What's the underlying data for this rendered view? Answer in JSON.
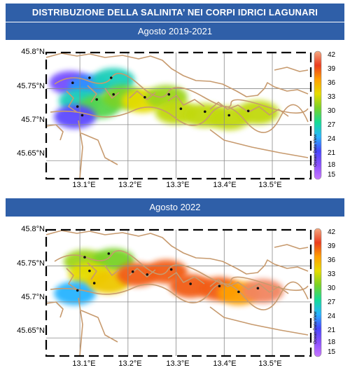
{
  "title": "DISTRIBUZIONE DELLA SALINITA’ NEI CORPI IDRICI LAGUNARI",
  "maps": [
    {
      "period": "Agosto 2019-2021",
      "lat_labels": [
        "45.8°N",
        "45.75°N",
        "45.7°N",
        "45.65°N"
      ],
      "lon_labels": [
        "13.1°E",
        "13.2°E",
        "13.3°E",
        "13.4°E",
        "13.5°E"
      ],
      "colorbar_ticks": [
        "42",
        "39",
        "36",
        "33",
        "30",
        "27",
        "24",
        "21",
        "18",
        "15"
      ],
      "watermark": "Ocean Data View",
      "salinity_range": [
        15,
        42
      ],
      "zones": [
        {
          "lon": 13.08,
          "lat": 45.758,
          "salinity": 19
        },
        {
          "lon": 13.12,
          "lat": 45.753,
          "salinity": 23
        },
        {
          "lon": 13.17,
          "lat": 45.762,
          "salinity": 26
        },
        {
          "lon": 13.1,
          "lat": 45.733,
          "salinity": 26
        },
        {
          "lon": 13.14,
          "lat": 45.725,
          "salinity": 29
        },
        {
          "lon": 13.09,
          "lat": 45.711,
          "salinity": 20
        },
        {
          "lon": 13.19,
          "lat": 45.738,
          "salinity": 30
        },
        {
          "lon": 13.23,
          "lat": 45.733,
          "salinity": 33
        },
        {
          "lon": 13.28,
          "lat": 45.738,
          "salinity": 31
        },
        {
          "lon": 13.3,
          "lat": 45.717,
          "salinity": 32
        },
        {
          "lon": 13.36,
          "lat": 45.713,
          "salinity": 32
        },
        {
          "lon": 13.41,
          "lat": 45.709,
          "salinity": 32
        },
        {
          "lon": 13.47,
          "lat": 45.717,
          "salinity": 32
        }
      ],
      "stations": [
        {
          "lon": 13.085,
          "lat": 45.758
        },
        {
          "lon": 13.12,
          "lat": 45.765
        },
        {
          "lon": 13.165,
          "lat": 45.765
        },
        {
          "lon": 13.135,
          "lat": 45.735
        },
        {
          "lon": 13.095,
          "lat": 45.725
        },
        {
          "lon": 13.105,
          "lat": 45.713
        },
        {
          "lon": 13.17,
          "lat": 45.742
        },
        {
          "lon": 13.235,
          "lat": 45.738
        },
        {
          "lon": 13.285,
          "lat": 45.742
        },
        {
          "lon": 13.31,
          "lat": 45.722
        },
        {
          "lon": 13.36,
          "lat": 45.718
        },
        {
          "lon": 13.41,
          "lat": 45.713
        },
        {
          "lon": 13.45,
          "lat": 45.719
        }
      ]
    },
    {
      "period": "Agosto 2022",
      "lat_labels": [
        "45.8°N",
        "45.75°N",
        "45.7°N",
        "45.65°N"
      ],
      "lon_labels": [
        "13.1°E",
        "13.2°E",
        "13.3°E",
        "13.4°E",
        "13.5°E"
      ],
      "colorbar_ticks": [
        "42",
        "39",
        "36",
        "33",
        "30",
        "27",
        "24",
        "21",
        "18",
        "15"
      ],
      "watermark": "Ocean Data View",
      "salinity_range": [
        15,
        42
      ],
      "zones": [
        {
          "lon": 13.11,
          "lat": 45.756,
          "salinity": 31
        },
        {
          "lon": 13.17,
          "lat": 45.758,
          "salinity": 30
        },
        {
          "lon": 13.12,
          "lat": 45.738,
          "salinity": 33
        },
        {
          "lon": 13.09,
          "lat": 45.712,
          "salinity": 24
        },
        {
          "lon": 13.16,
          "lat": 45.728,
          "salinity": 34
        },
        {
          "lon": 13.22,
          "lat": 45.738,
          "salinity": 38
        },
        {
          "lon": 13.28,
          "lat": 45.742,
          "salinity": 38
        },
        {
          "lon": 13.33,
          "lat": 45.722,
          "salinity": 38
        },
        {
          "lon": 13.39,
          "lat": 45.718,
          "salinity": 38
        },
        {
          "lon": 13.43,
          "lat": 45.712,
          "salinity": 36
        },
        {
          "lon": 13.48,
          "lat": 45.715,
          "salinity": 41
        }
      ],
      "stations": [
        {
          "lon": 13.11,
          "lat": 45.762
        },
        {
          "lon": 13.16,
          "lat": 45.767
        },
        {
          "lon": 13.12,
          "lat": 45.743
        },
        {
          "lon": 13.095,
          "lat": 45.716
        },
        {
          "lon": 13.13,
          "lat": 45.726
        },
        {
          "lon": 13.21,
          "lat": 45.742
        },
        {
          "lon": 13.24,
          "lat": 45.738
        },
        {
          "lon": 13.29,
          "lat": 45.745
        },
        {
          "lon": 13.33,
          "lat": 45.725
        },
        {
          "lon": 13.39,
          "lat": 45.722
        },
        {
          "lon": 13.43,
          "lat": 45.714
        },
        {
          "lon": 13.47,
          "lat": 45.719
        }
      ]
    }
  ]
}
